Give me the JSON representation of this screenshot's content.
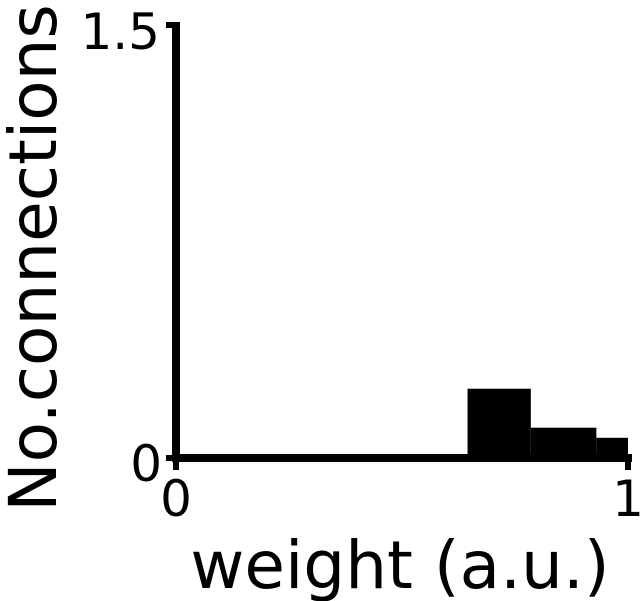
{
  "chart_data": {
    "type": "bar",
    "title": "",
    "xlabel": "weight (a.u.)",
    "ylabel": "No.connections",
    "xlim": [
      0,
      1
    ],
    "ylim": [
      0,
      1.5
    ],
    "x_ticks": [
      "0",
      "1"
    ],
    "y_ticks": [
      "0",
      "1.5"
    ],
    "grid": false,
    "bins": [
      {
        "x0": 0.645,
        "x1": 0.785,
        "value": 0.24
      },
      {
        "x0": 0.785,
        "x1": 0.93,
        "value": 0.105
      },
      {
        "x0": 0.93,
        "x1": 1.0,
        "value": 0.07
      }
    ],
    "bar_color": "#000000",
    "axis_color": "#000000"
  }
}
